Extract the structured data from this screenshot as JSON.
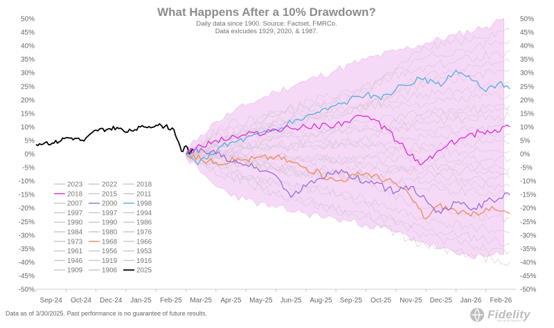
{
  "chart_data": {
    "type": "line",
    "title": "What Happens After a 10% Drawdown?",
    "subtitle_lines": [
      "Daily data since 1900.  Source: Factset, FMRCo.",
      "Data exlcudes 1929, 2020, & 1987."
    ],
    "ylim": [
      -50,
      50
    ],
    "yticks": [
      "50%",
      "45%",
      "40%",
      "35%",
      "30%",
      "25%",
      "20%",
      "15%",
      "10%",
      "5%",
      "0%",
      "-5%",
      "-10%",
      "-15%",
      "-20%",
      "-25%",
      "-30%",
      "-35%",
      "-40%",
      "-45%",
      "-50%"
    ],
    "xlabels": [
      "Sep-24",
      "Oct-24",
      "Dec-24",
      "Jan-25",
      "Feb-25",
      "Mar-25",
      "Apr-25",
      "May-25",
      "Jun-25",
      "Aug-25",
      "Sep-25",
      "Oct-25",
      "Nov-25",
      "Dec-25",
      "Jan-26",
      "Feb-26"
    ],
    "band": {
      "upper": [
        [
          5.0,
          1
        ],
        [
          5.5,
          7
        ],
        [
          6.0,
          12
        ],
        [
          7,
          18
        ],
        [
          8,
          23
        ],
        [
          9,
          27
        ],
        [
          10,
          31
        ],
        [
          11,
          35
        ],
        [
          12,
          38
        ],
        [
          13,
          41
        ],
        [
          14,
          44
        ],
        [
          15,
          47
        ],
        [
          15.6,
          50
        ]
      ],
      "lower": [
        [
          5.0,
          -1
        ],
        [
          5.5,
          -7
        ],
        [
          6.0,
          -12
        ],
        [
          7,
          -17
        ],
        [
          8,
          -20
        ],
        [
          9,
          -22
        ],
        [
          10,
          -24
        ],
        [
          11,
          -26
        ],
        [
          12,
          -29
        ],
        [
          13,
          -33
        ],
        [
          14,
          -37
        ],
        [
          15,
          -38
        ],
        [
          15.6,
          -37
        ]
      ]
    },
    "series": [
      {
        "name": "2025",
        "color": "#000000",
        "width": 1.8,
        "points": [
          [
            0,
            3.5
          ],
          [
            0.3,
            4.2
          ],
          [
            0.6,
            4.0
          ],
          [
            1.0,
            6.0
          ],
          [
            1.3,
            5.8
          ],
          [
            1.6,
            4.8
          ],
          [
            2.0,
            8.8
          ],
          [
            2.4,
            9.2
          ],
          [
            2.7,
            9.8
          ],
          [
            3.0,
            8.0
          ],
          [
            3.3,
            9.0
          ],
          [
            3.6,
            10.0
          ],
          [
            4.0,
            10.6
          ],
          [
            4.3,
            10.2
          ],
          [
            4.6,
            9.0
          ],
          [
            4.75,
            4.5
          ],
          [
            4.85,
            1.0
          ],
          [
            5.0,
            3.0
          ],
          [
            5.1,
            0.2
          ],
          [
            5.25,
            1.5
          ]
        ]
      },
      {
        "name": "1998",
        "color": "#4faee0",
        "width": 1.3,
        "points": [
          [
            5.0,
            0
          ],
          [
            5.4,
            -4
          ],
          [
            5.8,
            0
          ],
          [
            6.2,
            3
          ],
          [
            7,
            6
          ],
          [
            8,
            9
          ],
          [
            9,
            14
          ],
          [
            10,
            18
          ],
          [
            11,
            22
          ],
          [
            11.5,
            20
          ],
          [
            12,
            24
          ],
          [
            12.8,
            28
          ],
          [
            13.5,
            25
          ],
          [
            14,
            31
          ],
          [
            14.6,
            27
          ],
          [
            15,
            23
          ],
          [
            15.4,
            26
          ],
          [
            15.8,
            24
          ]
        ]
      },
      {
        "name": "2018",
        "color": "#e02bd8",
        "width": 1.3,
        "points": [
          [
            5.0,
            0
          ],
          [
            5.5,
            3
          ],
          [
            6,
            5
          ],
          [
            7,
            7
          ],
          [
            8,
            9
          ],
          [
            9,
            10
          ],
          [
            10,
            11
          ],
          [
            11,
            14
          ],
          [
            11.7,
            9
          ],
          [
            12.3,
            2
          ],
          [
            12.8,
            -4
          ],
          [
            13.3,
            0
          ],
          [
            13.7,
            3
          ],
          [
            14.2,
            6
          ],
          [
            14.8,
            8
          ],
          [
            15.3,
            9
          ],
          [
            15.8,
            10
          ]
        ]
      },
      {
        "name": "1968",
        "color": "#f08a55",
        "width": 1.3,
        "points": [
          [
            5.0,
            0
          ],
          [
            5.5,
            -2
          ],
          [
            6,
            -3
          ],
          [
            7,
            -2
          ],
          [
            8,
            -1
          ],
          [
            9,
            -5
          ],
          [
            10,
            -10
          ],
          [
            11,
            -7
          ],
          [
            12,
            -11
          ],
          [
            12.5,
            -16
          ],
          [
            13,
            -24
          ],
          [
            13.4,
            -19
          ],
          [
            14,
            -21
          ],
          [
            14.5,
            -23
          ],
          [
            15,
            -20
          ],
          [
            15.4,
            -21
          ],
          [
            15.8,
            -22
          ]
        ]
      },
      {
        "name": "2000",
        "color": "#9a6ad8",
        "width": 1.3,
        "points": [
          [
            5.0,
            0
          ],
          [
            5.5,
            2
          ],
          [
            6,
            0
          ],
          [
            7,
            -4
          ],
          [
            8,
            -8
          ],
          [
            8.5,
            -16
          ],
          [
            9,
            -12
          ],
          [
            10,
            -6
          ],
          [
            11,
            -10
          ],
          [
            12,
            -14
          ],
          [
            12.5,
            -12
          ],
          [
            13,
            -17
          ],
          [
            13.5,
            -22
          ],
          [
            14,
            -18
          ],
          [
            14.6,
            -20
          ],
          [
            15.2,
            -17
          ],
          [
            15.8,
            -15
          ]
        ]
      }
    ],
    "legend_entries": [
      {
        "label": "2023",
        "color": "#cfc2d1"
      },
      {
        "label": "2022",
        "color": "#cfc2d1"
      },
      {
        "label": "2018",
        "color": "#cfc2d1"
      },
      {
        "label": "2018",
        "color": "#e02bd8"
      },
      {
        "label": "2015",
        "color": "#cfc2d1"
      },
      {
        "label": "2011",
        "color": "#cfc2d1"
      },
      {
        "label": "2007",
        "color": "#cfc2d1"
      },
      {
        "label": "2000",
        "color": "#9a6ad8"
      },
      {
        "label": "1998",
        "color": "#4faee0"
      },
      {
        "label": "1997",
        "color": "#cfc2d1"
      },
      {
        "label": "1997",
        "color": "#cfc2d1"
      },
      {
        "label": "1994",
        "color": "#cfc2d1"
      },
      {
        "label": "1990",
        "color": "#cfc2d1"
      },
      {
        "label": "1990",
        "color": "#cfc2d1"
      },
      {
        "label": "1986",
        "color": "#cfc2d1"
      },
      {
        "label": "1984",
        "color": "#cfc2d1"
      },
      {
        "label": "1980",
        "color": "#cfc2d1"
      },
      {
        "label": "1976",
        "color": "#cfc2d1"
      },
      {
        "label": "1973",
        "color": "#cfc2d1"
      },
      {
        "label": "1968",
        "color": "#f08a55"
      },
      {
        "label": "1966",
        "color": "#cfc2d1"
      },
      {
        "label": "1961",
        "color": "#cfc2d1"
      },
      {
        "label": "1956",
        "color": "#cfc2d1"
      },
      {
        "label": "1953",
        "color": "#cfc2d1"
      },
      {
        "label": "1946",
        "color": "#cfc2d1"
      },
      {
        "label": "1919",
        "color": "#cfc2d1"
      },
      {
        "label": "1916",
        "color": "#cfc2d1"
      },
      {
        "label": "1909",
        "color": "#cfc2d1"
      },
      {
        "label": "1906",
        "color": "#cfc2d1"
      },
      {
        "label": "2025",
        "color": "#000000"
      }
    ],
    "grid": false,
    "legend_position": "bottom-left",
    "colors": {
      "band": "#f6d9f7",
      "band_edge": "#e9b8ec",
      "faint_series": "#d8c8da"
    }
  },
  "footer": {
    "note": "Data as of 3/30/2025. Past performance is no guarantee of future results.",
    "brand": "Fidelity",
    "brand_sub": "INVESTMENTS"
  }
}
